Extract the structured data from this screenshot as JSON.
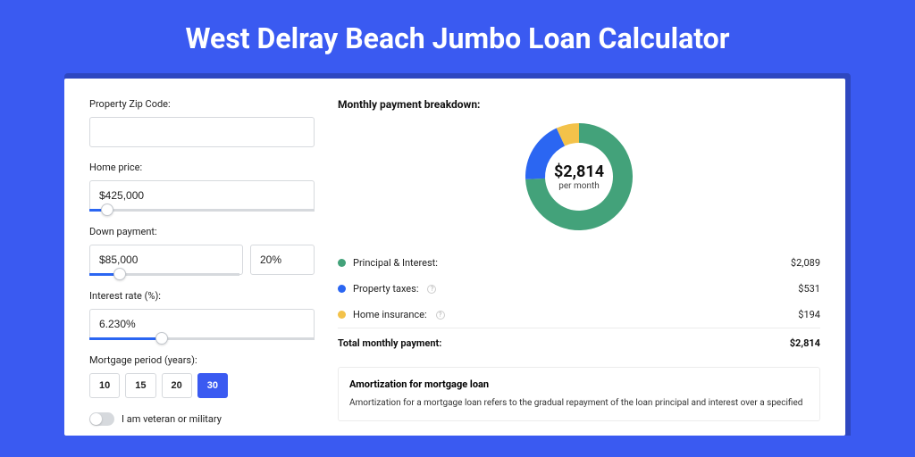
{
  "page": {
    "title": "West Delray Beach Jumbo Loan Calculator",
    "background_color": "#3a5af1",
    "shadow_color": "#2e47c0"
  },
  "form": {
    "zip": {
      "label": "Property Zip Code:",
      "value": ""
    },
    "home_price": {
      "label": "Home price:",
      "value": "$425,000",
      "slider_pct": 8
    },
    "down_payment": {
      "label": "Down payment:",
      "amount": "$85,000",
      "percent": "20%",
      "slider_pct": 20
    },
    "interest_rate": {
      "label": "Interest rate (%):",
      "value": "6.230%",
      "slider_pct": 32
    },
    "period": {
      "label": "Mortgage period (years):",
      "options": [
        "10",
        "15",
        "20",
        "30"
      ],
      "selected": "30"
    },
    "veteran": {
      "label": "I am veteran or military",
      "on": false
    }
  },
  "breakdown": {
    "title": "Monthly payment breakdown:",
    "donut": {
      "amount": "$2,814",
      "sub": "per month",
      "segments": [
        {
          "name": "principal-interest",
          "value": 2089,
          "color": "#43a27a"
        },
        {
          "name": "property-taxes",
          "value": 531,
          "color": "#2b66f2"
        },
        {
          "name": "home-insurance",
          "value": 194,
          "color": "#f3c24a"
        }
      ]
    },
    "rows": [
      {
        "label": "Principal & Interest:",
        "value": "$2,089",
        "color": "#43a27a",
        "info": false
      },
      {
        "label": "Property taxes:",
        "value": "$531",
        "color": "#2b66f2",
        "info": true
      },
      {
        "label": "Home insurance:",
        "value": "$194",
        "color": "#f3c24a",
        "info": true
      }
    ],
    "total": {
      "label": "Total monthly payment:",
      "value": "$2,814"
    }
  },
  "amortization": {
    "title": "Amortization for mortgage loan",
    "text": "Amortization for a mortgage loan refers to the gradual repayment of the loan principal and interest over a specified"
  }
}
